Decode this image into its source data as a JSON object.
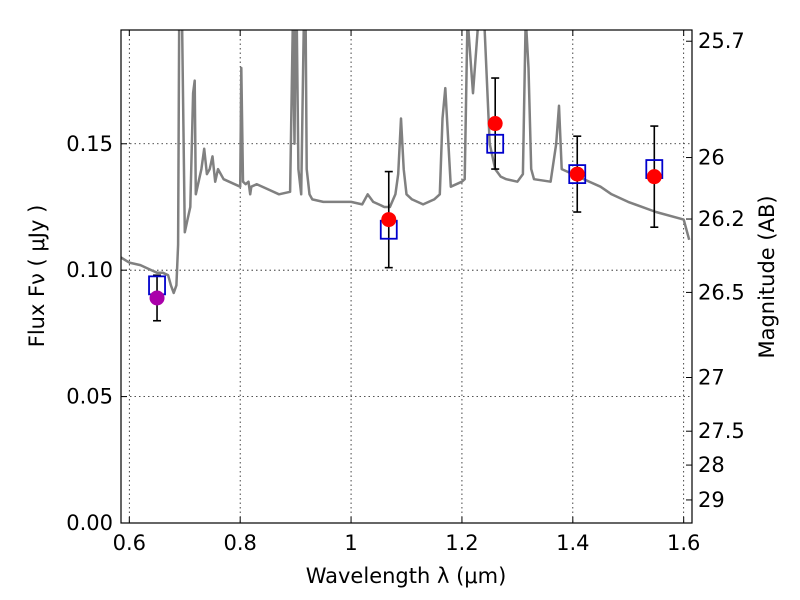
{
  "chart_data": {
    "type": "scatter",
    "xlabel": "Wavelength  λ (μm)",
    "ylabel": "Flux  Fν  ( μJy )",
    "ylabel_right": "Magnitude (AB)",
    "xlim": [
      0.585,
      1.615
    ],
    "ylim": [
      0.0,
      0.195
    ],
    "x_ticks": [
      {
        "value": 0.6,
        "label": "0.6"
      },
      {
        "value": 0.8,
        "label": "0.8"
      },
      {
        "value": 1.0,
        "label": "1"
      },
      {
        "value": 1.2,
        "label": "1.2"
      },
      {
        "value": 1.4,
        "label": "1.4"
      },
      {
        "value": 1.6,
        "label": "1.6"
      }
    ],
    "y_ticks": [
      {
        "value": 0.0,
        "label": "0.00"
      },
      {
        "value": 0.05,
        "label": "0.05"
      },
      {
        "value": 0.1,
        "label": "0.10"
      },
      {
        "value": 0.15,
        "label": "0.15"
      }
    ],
    "right_ticks": [
      {
        "mag": 25.7,
        "label": "25.7"
      },
      {
        "mag": 26,
        "label": "26"
      },
      {
        "mag": 26.2,
        "label": "26.2"
      },
      {
        "mag": 26.5,
        "label": "26.5"
      },
      {
        "mag": 27,
        "label": "27"
      },
      {
        "mag": 27.5,
        "label": "27.5"
      },
      {
        "mag": 28,
        "label": "28"
      },
      {
        "mag": 29,
        "label": "29"
      }
    ],
    "grid": true,
    "colors": {
      "spectrum": "#808080",
      "model_box": "#0000cc",
      "observed": "#ff0000",
      "first_point": "#aa00aa",
      "errorbar": "#000000"
    },
    "series": [
      {
        "kind": "model-spectrum",
        "x": [
          0.585,
          0.6,
          0.62,
          0.64,
          0.65,
          0.66,
          0.67,
          0.675,
          0.68,
          0.685,
          0.688,
          0.69,
          0.692,
          0.695,
          0.7,
          0.705,
          0.71,
          0.715,
          0.718,
          0.72,
          0.73,
          0.735,
          0.74,
          0.745,
          0.75,
          0.755,
          0.76,
          0.77,
          0.78,
          0.79,
          0.8,
          0.802,
          0.805,
          0.81,
          0.815,
          0.818,
          0.82,
          0.83,
          0.85,
          0.87,
          0.89,
          0.895,
          0.898,
          0.9,
          0.902,
          0.905,
          0.91,
          0.915,
          0.918,
          0.92,
          0.925,
          0.93,
          0.95,
          1.0,
          1.02,
          1.03,
          1.04,
          1.05,
          1.06,
          1.07,
          1.08,
          1.085,
          1.09,
          1.095,
          1.1,
          1.11,
          1.13,
          1.15,
          1.16,
          1.165,
          1.17,
          1.18,
          1.2,
          1.205,
          1.21,
          1.22,
          1.23,
          1.24,
          1.25,
          1.26,
          1.27,
          1.28,
          1.3,
          1.31,
          1.315,
          1.32,
          1.325,
          1.33,
          1.36,
          1.37,
          1.375,
          1.38,
          1.4,
          1.43,
          1.45,
          1.47,
          1.5,
          1.55,
          1.6,
          1.61
        ],
        "y": [
          0.105,
          0.103,
          0.102,
          0.1,
          0.099,
          0.099,
          0.098,
          0.094,
          0.091,
          0.094,
          0.11,
          0.2,
          0.2,
          0.2,
          0.115,
          0.12,
          0.125,
          0.17,
          0.175,
          0.13,
          0.14,
          0.148,
          0.138,
          0.14,
          0.145,
          0.135,
          0.14,
          0.136,
          0.135,
          0.134,
          0.133,
          0.18,
          0.135,
          0.134,
          0.135,
          0.13,
          0.133,
          0.134,
          0.132,
          0.13,
          0.131,
          0.2,
          0.15,
          0.2,
          0.2,
          0.14,
          0.13,
          0.2,
          0.2,
          0.14,
          0.13,
          0.128,
          0.127,
          0.127,
          0.126,
          0.13,
          0.127,
          0.126,
          0.125,
          0.125,
          0.13,
          0.138,
          0.16,
          0.14,
          0.13,
          0.128,
          0.126,
          0.128,
          0.13,
          0.16,
          0.172,
          0.133,
          0.135,
          0.136,
          0.2,
          0.17,
          0.2,
          0.2,
          0.15,
          0.14,
          0.137,
          0.136,
          0.135,
          0.138,
          0.2,
          0.18,
          0.14,
          0.136,
          0.135,
          0.15,
          0.165,
          0.14,
          0.138,
          0.135,
          0.133,
          0.13,
          0.127,
          0.123,
          0.12,
          0.112
        ]
      },
      {
        "kind": "model-box",
        "x": [
          0.65,
          1.068,
          1.26,
          1.408,
          1.547
        ],
        "y": [
          0.094,
          0.116,
          0.15,
          0.138,
          0.14
        ]
      },
      {
        "kind": "observed",
        "x": [
          0.65,
          1.068,
          1.26,
          1.408,
          1.547
        ],
        "y": [
          0.089,
          0.12,
          0.158,
          0.138,
          0.137
        ],
        "yerr": [
          0.009,
          0.019,
          0.018,
          0.015,
          0.02
        ]
      }
    ]
  }
}
